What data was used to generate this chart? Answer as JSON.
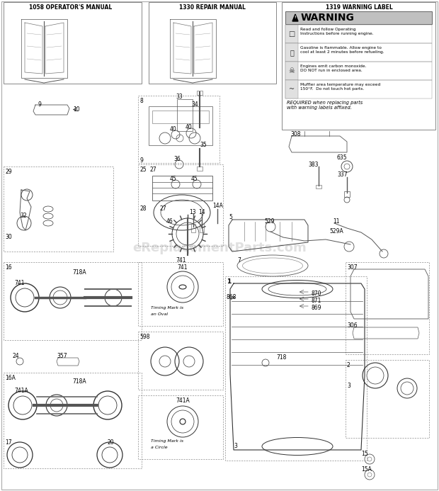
{
  "bg_color": "#ffffff",
  "watermark": "eReplacementParts.com",
  "box1_title": "1058 OPERATOR'S MANUAL",
  "box2_title": "1330 REPAIR MANUAL",
  "box3_title": "1319 WARNING LABEL",
  "warn_header": "WARNING",
  "warn_row1": "Read and follow Operating\nInstructions before running engine.",
  "warn_row2": "Gasoline is flammable. Allow engine to\ncool at least 2 minutes before refueling.",
  "warn_row3": "Engines emit carbon monoxide.\nDO NOT run in enclosed area.",
  "warn_row4": "Muffler area temperature may exceed\n150°F.  Do not touch hot parts.",
  "required_text": "REQUIRED when replacing parts\nwith warning labels affixed.",
  "gray_light": "#d8d8d8",
  "gray_mid": "#aaaaaa",
  "gray_dark": "#555555",
  "black": "#000000"
}
